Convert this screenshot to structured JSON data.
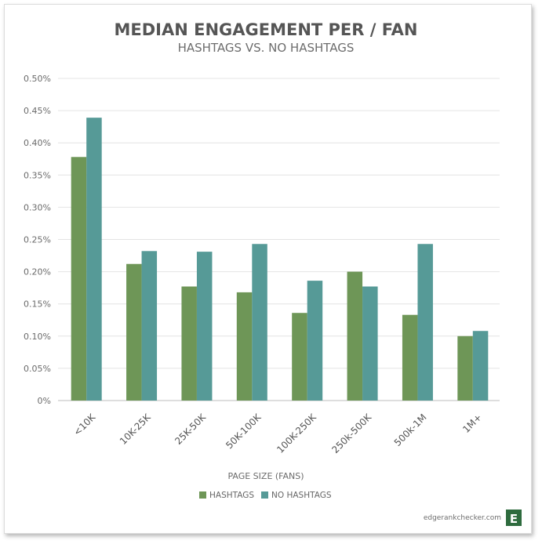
{
  "chart_data": {
    "type": "bar",
    "title": "MEDIAN ENGAGEMENT PER / FAN",
    "subtitle": "HASHTAGS VS. NO HASHTAGS",
    "xlabel": "PAGE SIZE (FANS)",
    "ylabel": "",
    "ylim": [
      0,
      0.5
    ],
    "yticks": [
      "0%",
      "0.05%",
      "0.10%",
      "0.15%",
      "0.20%",
      "0.25%",
      "0.30%",
      "0.35%",
      "0.40%",
      "0.45%",
      "0.50%"
    ],
    "categories": [
      "<10K",
      "10K-25K",
      "25K-50K",
      "50K-100K",
      "100K-250K",
      "250k-500K",
      "500k-1M",
      "1M+"
    ],
    "series": [
      {
        "name": "HASHTAGS",
        "color": "#6e9657",
        "values": [
          0.378,
          0.212,
          0.177,
          0.168,
          0.136,
          0.2,
          0.133,
          0.1
        ]
      },
      {
        "name": "NO HASHTAGS",
        "color": "#569a97",
        "values": [
          0.439,
          0.232,
          0.231,
          0.243,
          0.186,
          0.177,
          0.243,
          0.108
        ]
      }
    ],
    "grid": true,
    "legend_position": "bottom-center"
  },
  "footer": {
    "site": "edgerankchecker.com",
    "logo_letter": "E"
  }
}
